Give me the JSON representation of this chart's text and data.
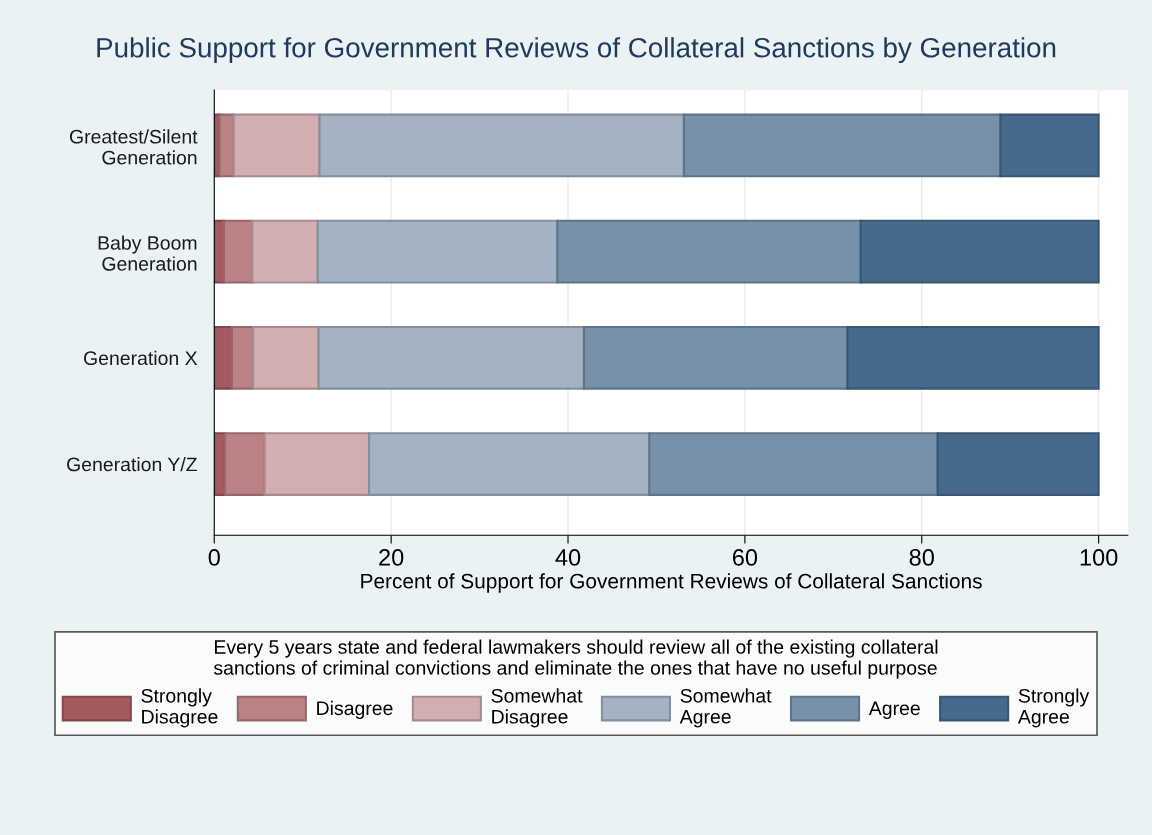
{
  "chart_data": {
    "type": "bar",
    "orientation": "horizontal",
    "stacked": true,
    "title": "Public Support for Government Reviews of Collateral Sanctions by Generation",
    "xlabel": "Percent of Support for Government Reviews of Collateral Sanctions",
    "legend_title": "Every 5 years state and federal lawmakers should review all of the existing collateral\nsanctions of criminal convictions and eliminate the ones that have no useful purpose",
    "categories": [
      "Greatest/Silent\nGeneration",
      "Baby Boom\nGeneration",
      "Generation X",
      "Generation Y/Z"
    ],
    "series": [
      {
        "name": "Strongly Disagree",
        "color": "#a45a5f",
        "values": [
          0.6,
          1.1,
          2.0,
          1.2
        ]
      },
      {
        "name": "Disagree",
        "color": "#bb8286",
        "values": [
          1.6,
          3.2,
          2.4,
          4.5
        ]
      },
      {
        "name": "Somewhat Disagree",
        "color": "#d2aeb1",
        "values": [
          9.7,
          7.4,
          7.4,
          11.8
        ]
      },
      {
        "name": "Somewhat Agree",
        "color": "#a3b3c4",
        "values": [
          41.2,
          27.1,
          30.0,
          31.7
        ]
      },
      {
        "name": "Agree",
        "color": "#7791ab",
        "values": [
          35.8,
          34.3,
          29.8,
          32.6
        ]
      },
      {
        "name": "Strongly Agree",
        "color": "#466a8e",
        "values": [
          11.1,
          26.9,
          28.4,
          18.2
        ]
      }
    ],
    "xlim": [
      0,
      103.3
    ],
    "xticks": [
      0,
      20,
      40,
      60,
      80,
      100
    ],
    "grid": "x",
    "legend": "bottom"
  }
}
